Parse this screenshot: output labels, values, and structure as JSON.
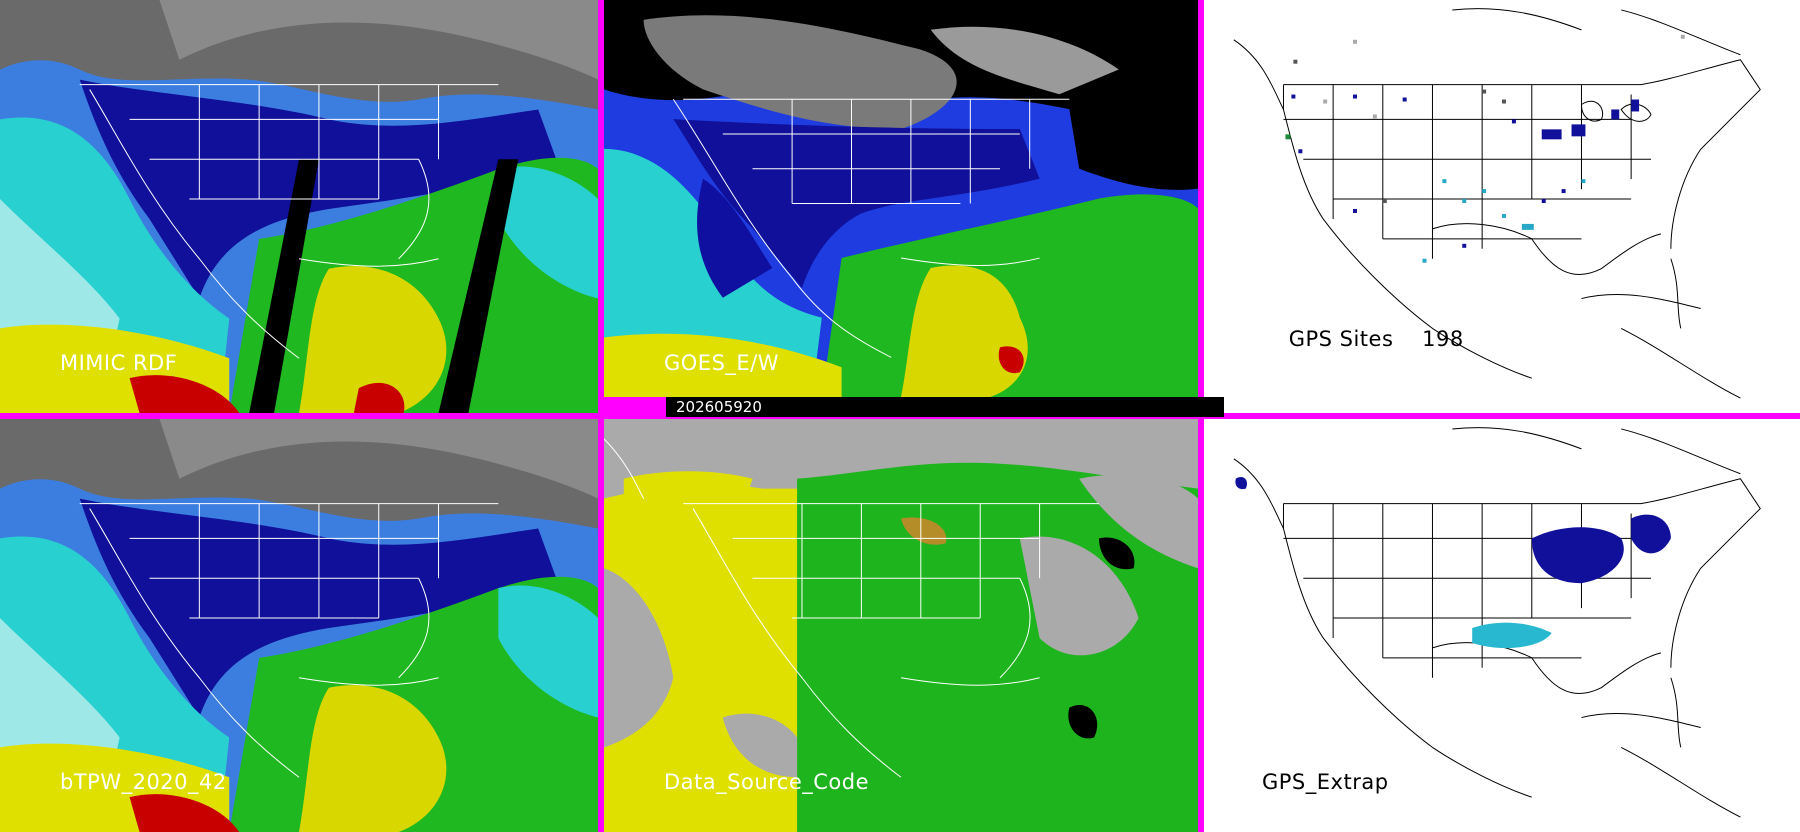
{
  "panels": {
    "mimic": {
      "label": "MIMIC RDF"
    },
    "goes": {
      "label": "GOES_E/W"
    },
    "gps_sites": {
      "label": "GPS Sites",
      "count": "198"
    },
    "btpw": {
      "label": "bTPW_2020_42"
    },
    "data_source": {
      "label": "Data_Source_Code"
    },
    "gps_extrap": {
      "label": "GPS_Extrap"
    }
  },
  "timestamp": "202605920",
  "colors": {
    "divider": "#ff00ff",
    "dry": "#5a5a5a",
    "low": "#1010a0",
    "mid_low": "#1e3ce0",
    "mid": "#20d8d8",
    "mid_high": "#28c028",
    "high": "#e0e000",
    "very_high": "#c80000",
    "nodata": "#000000",
    "source_gray": "#aaaaaa",
    "source_yellow": "#e0e000",
    "source_green": "#1eb41e"
  }
}
